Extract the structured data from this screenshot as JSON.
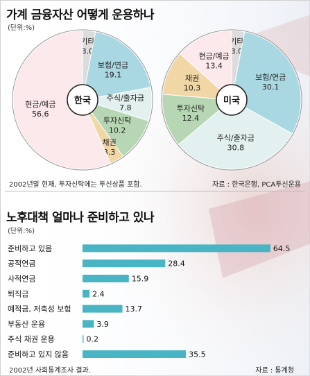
{
  "chart_data": [
    {
      "type": "pie",
      "title": "가계 금융자산 어떻게 운용하나",
      "unit_label": "(단위:%)",
      "center_label": "한국",
      "slices": [
        {
          "name": "기타",
          "value": 3.0,
          "color": "#dcdcdc"
        },
        {
          "name": "보험/연금",
          "value": 19.1,
          "color": "#a9d8e2"
        },
        {
          "name": "주식/출자금",
          "value": 7.8,
          "color": "#e2f1ef"
        },
        {
          "name": "투자신탁",
          "value": 10.2,
          "color": "#b7d7b4"
        },
        {
          "name": "채권",
          "value": 3.3,
          "color": "#f1d6a6"
        },
        {
          "name": "현금/예금",
          "value": 56.6,
          "color": "#fbe9ec"
        }
      ],
      "value_labels": [
        "3.0",
        "19.1",
        "7.8",
        "10.2",
        "3.3",
        "56.6"
      ]
    },
    {
      "type": "pie",
      "center_label": "미국",
      "slices": [
        {
          "name": "기타",
          "value": 3.0,
          "color": "#dcdcdc"
        },
        {
          "name": "보험/연금",
          "value": 30.1,
          "color": "#a9d8e2"
        },
        {
          "name": "주식/출자금",
          "value": 30.8,
          "color": "#e2f1ef"
        },
        {
          "name": "투자신탁",
          "value": 12.4,
          "color": "#b7d7b4"
        },
        {
          "name": "채권",
          "value": 10.3,
          "color": "#f1d6a6"
        },
        {
          "name": "현금/예금",
          "value": 13.4,
          "color": "#fbe9ec"
        }
      ],
      "value_labels": [
        "3.0",
        "30.1",
        "30.8",
        "12.4",
        "10.3",
        "13.4"
      ]
    },
    {
      "type": "bar",
      "orientation": "horizontal",
      "title": "노후대책 얼마나 준비하고 있나",
      "unit_label": "(단위:%)",
      "categories": [
        "준비하고 있음",
        "공적연금",
        "사적연금",
        "퇴직금",
        "예적금, 저축성 보험",
        "부동산 운용",
        "주식 채권 운용",
        "준비하고 있지 않음"
      ],
      "values": [
        64.5,
        28.4,
        15.9,
        2.4,
        13.7,
        3.9,
        0.2,
        35.5
      ],
      "value_labels": [
        "64.5",
        "28.4",
        "15.9",
        "2.4",
        "13.7",
        "3.9",
        "0.2",
        "35.5"
      ],
      "xlim": [
        0,
        70
      ],
      "bar_color": "#48b4c4"
    }
  ],
  "notes": {
    "pie_footnote": "2002년말 현재, 투자신탁에는 투신상품 포함.",
    "pie_source": "자료 : 한국은행, PCA투신운용",
    "bar_footnote": "2002년 사회통계조사 결과.",
    "bar_source": "자료 : 통계청"
  }
}
